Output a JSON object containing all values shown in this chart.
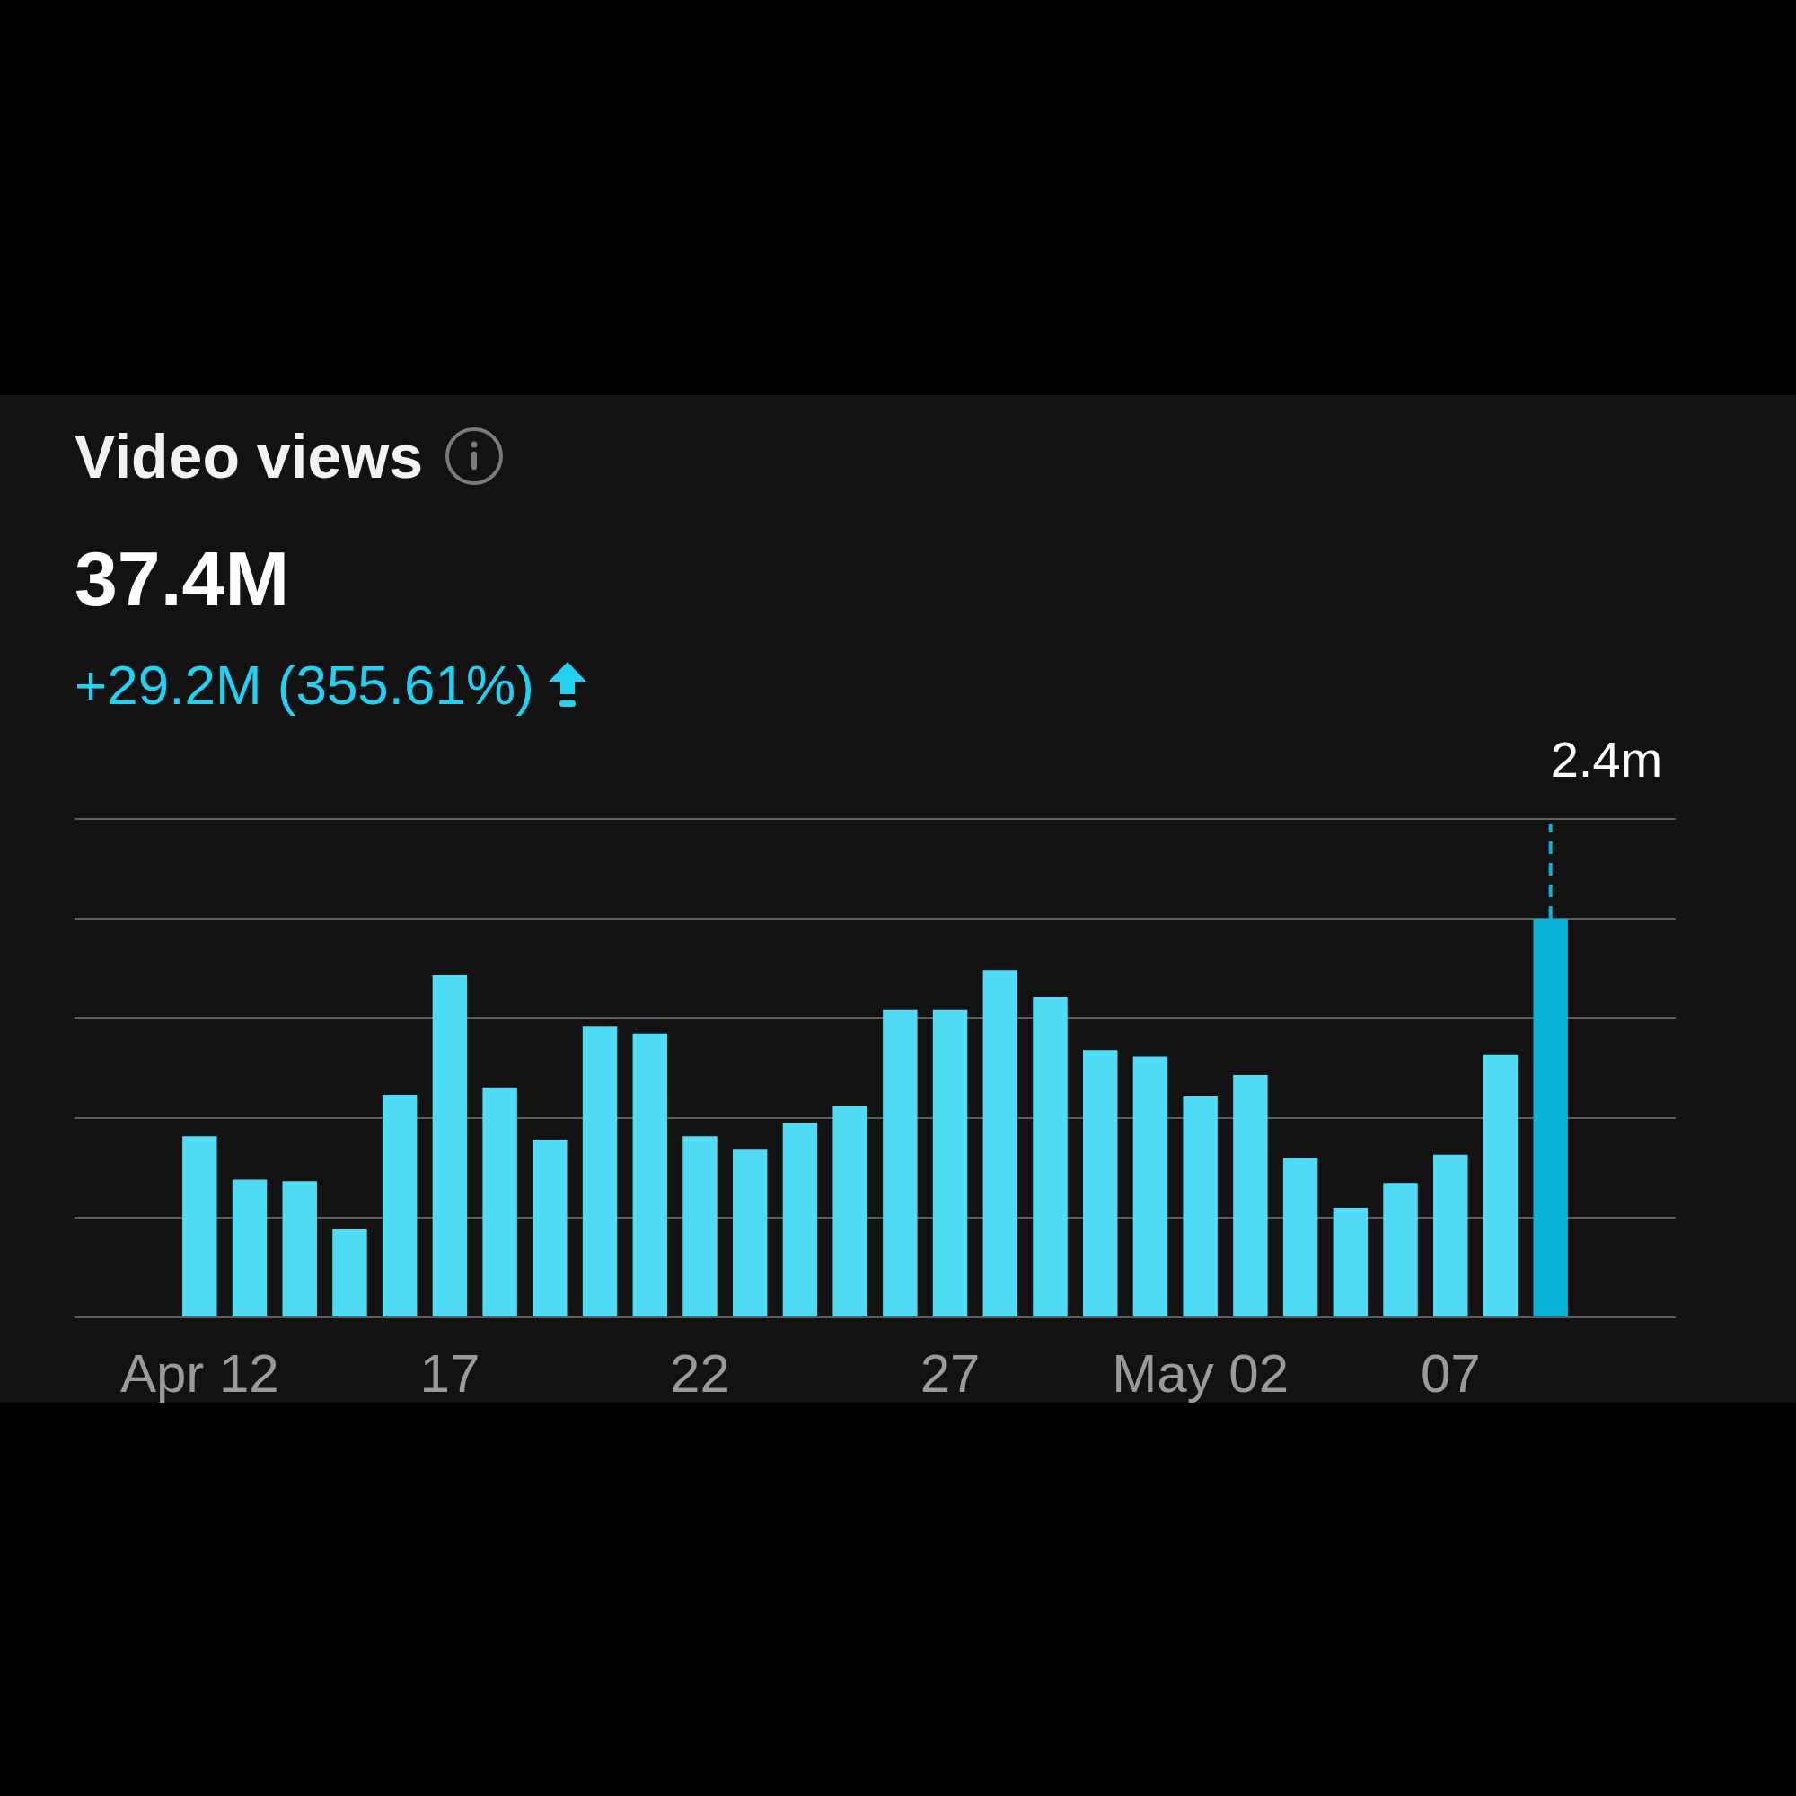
{
  "chart_data": {
    "type": "bar",
    "title": "Video views",
    "subtitle": "37.4M",
    "annotations": [
      "+29.2M (355.61%)"
    ],
    "categories": [
      "Apr 12",
      null,
      null,
      null,
      null,
      "17",
      null,
      null,
      null,
      null,
      "22",
      null,
      null,
      null,
      null,
      "27",
      null,
      null,
      null,
      null,
      "May 02",
      null,
      null,
      null,
      null,
      "07",
      null,
      null
    ],
    "values": [
      1.09,
      0.83,
      0.82,
      0.53,
      1.34,
      2.06,
      1.38,
      1.07,
      1.75,
      1.71,
      1.09,
      1.01,
      1.17,
      1.27,
      1.85,
      1.85,
      2.09,
      1.93,
      1.61,
      1.57,
      1.33,
      1.46,
      0.96,
      0.66,
      0.81,
      0.98,
      1.58,
      2.4
    ],
    "value_labels": [
      null,
      null,
      null,
      null,
      null,
      null,
      null,
      null,
      null,
      null,
      null,
      null,
      null,
      null,
      null,
      null,
      null,
      null,
      null,
      null,
      null,
      null,
      null,
      null,
      null,
      null,
      null,
      "2.4m"
    ],
    "colors": [
      "#50dcf5",
      "#50dcf5",
      "#50dcf5",
      "#50dcf5",
      "#50dcf5",
      "#50dcf5",
      "#50dcf5",
      "#50dcf5",
      "#50dcf5",
      "#50dcf5",
      "#50dcf5",
      "#50dcf5",
      "#50dcf5",
      "#50dcf5",
      "#50dcf5",
      "#50dcf5",
      "#50dcf5",
      "#50dcf5",
      "#50dcf5",
      "#50dcf5",
      "#50dcf5",
      "#50dcf5",
      "#50dcf5",
      "#50dcf5",
      "#50dcf5",
      "#50dcf5",
      "#50dcf5",
      "#0ab4d8"
    ],
    "ylim": [
      0,
      3
    ],
    "yticks": [
      {
        "value": 0,
        "label": null
      },
      {
        "value": 0.6,
        "label": null
      },
      {
        "value": 1.2,
        "label": null
      },
      {
        "value": 1.8,
        "label": null
      },
      {
        "value": 2.4,
        "label": null
      },
      {
        "value": 3,
        "label": null
      }
    ],
    "grid": "y",
    "tick_labels": "x"
  }
}
